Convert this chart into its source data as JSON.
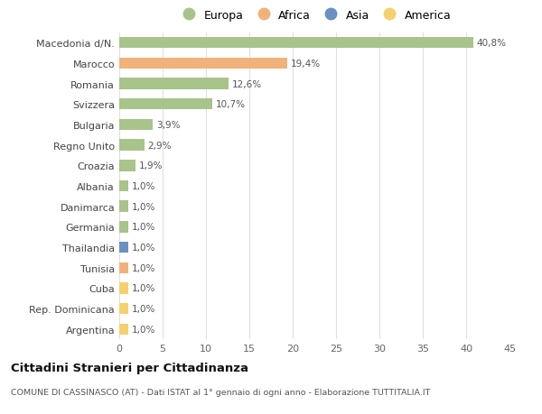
{
  "categories": [
    "Macedonia d/N.",
    "Marocco",
    "Romania",
    "Svizzera",
    "Bulgaria",
    "Regno Unito",
    "Croazia",
    "Albania",
    "Danimarca",
    "Germania",
    "Thailandia",
    "Tunisia",
    "Cuba",
    "Rep. Dominicana",
    "Argentina"
  ],
  "values": [
    40.8,
    19.4,
    12.6,
    10.7,
    3.9,
    2.9,
    1.9,
    1.0,
    1.0,
    1.0,
    1.0,
    1.0,
    1.0,
    1.0,
    1.0
  ],
  "labels": [
    "40,8%",
    "19,4%",
    "12,6%",
    "10,7%",
    "3,9%",
    "2,9%",
    "1,9%",
    "1,0%",
    "1,0%",
    "1,0%",
    "1,0%",
    "1,0%",
    "1,0%",
    "1,0%",
    "1,0%"
  ],
  "colors": [
    "#a8c48a",
    "#f0b27a",
    "#a8c48a",
    "#a8c48a",
    "#a8c48a",
    "#a8c48a",
    "#a8c48a",
    "#a8c48a",
    "#a8c48a",
    "#a8c48a",
    "#6b8fc4",
    "#f0b27a",
    "#f5d06e",
    "#f5d06e",
    "#f5d06e"
  ],
  "legend_labels": [
    "Europa",
    "Africa",
    "Asia",
    "America"
  ],
  "legend_colors": [
    "#a8c48a",
    "#f0b27a",
    "#6b8fc4",
    "#f5d06e"
  ],
  "title": "Cittadini Stranieri per Cittadinanza",
  "subtitle": "COMUNE DI CASSINASCO (AT) - Dati ISTAT al 1° gennaio di ogni anno - Elaborazione TUTTITALIA.IT",
  "xlim": [
    0,
    45
  ],
  "xticks": [
    0,
    5,
    10,
    15,
    20,
    25,
    30,
    35,
    40,
    45
  ],
  "background_color": "#ffffff",
  "grid_color": "#e0e0e0"
}
